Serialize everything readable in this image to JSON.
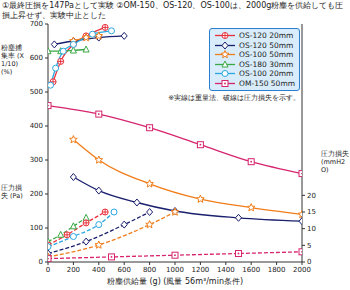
{
  "chart_data": {
    "type": "line",
    "title": "①最終圧損を147Paとして実験 ②OM-150、OS-120、OS-100は、2000g粉塵を供給しても圧損上昇せず、実験中止とした",
    "annotation": "※実線は重量法、破線は圧力損失を示す。",
    "x_label": "粉塵供給量 (g) (風量 56m³/min条件)",
    "y_label": "粉塵捕集率 (X1/10) (%)",
    "y_label_lower": "圧力損失 (Pa)",
    "y2_label": "圧力損失 (mmH2O)",
    "xlim": [
      0,
      2000
    ],
    "xticks": [
      0,
      200,
      400,
      600,
      800,
      1000,
      1200,
      1400,
      1600,
      1800,
      2000
    ],
    "ylim": [
      0,
      700
    ],
    "yticks": [
      0,
      100,
      200,
      300,
      400,
      500,
      600,
      700
    ],
    "y2lim": [
      0,
      71.4
    ],
    "y2ticks": [
      0,
      5,
      10,
      15,
      20
    ],
    "grid": false,
    "legend": "upper right",
    "series": [
      {
        "name": "OS-120 20mm",
        "color": "#e8323c",
        "marker": "circle_plus",
        "line_style": "solid",
        "x": [
          40,
          100,
          200,
          300,
          450
        ],
        "values": [
          530,
          590,
          640,
          665,
          690
        ]
      },
      {
        "name": "OS-120 50mm",
        "color": "#1a1f6e",
        "marker": "diamond",
        "line_style": "solid",
        "x": [
          50,
          200,
          400,
          600
        ],
        "values": [
          640,
          650,
          660,
          665
        ]
      },
      {
        "name": "OS-100 50mm",
        "color": "#f07d1a",
        "marker": "star",
        "line_style": "solid",
        "x": [
          200,
          300,
          400
        ],
        "values": [
          650,
          660,
          665
        ]
      },
      {
        "name": "OS-180 30mm",
        "color": "#3aa845",
        "marker": "triangle",
        "line_style": "solid",
        "x": [
          0,
          100,
          200,
          300
        ],
        "values": [
          620,
          620,
          622,
          625
        ]
      },
      {
        "name": "OS-100 20mm",
        "color": "#2aa7e0",
        "marker": "circle",
        "line_style": "solid",
        "x": [
          20,
          60,
          120,
          200,
          350,
          500
        ],
        "values": [
          520,
          570,
          620,
          640,
          670,
          680
        ]
      },
      {
        "name": "OM-150 50mm",
        "color": "#d6246e",
        "marker": "square",
        "line_style": "solid",
        "x": [
          0,
          400,
          800,
          1200,
          1600,
          2000
        ],
        "values": [
          460,
          435,
          395,
          345,
          295,
          260
        ]
      },
      {
        "name": "OS-100 50mm",
        "color": "#f07d1a",
        "marker": "star",
        "line_style": "solid",
        "x": [
          200,
          400,
          800,
          1200,
          1600,
          2000
        ],
        "values": [
          360,
          300,
          230,
          185,
          160,
          140
        ]
      },
      {
        "name": "OS-120 50mm",
        "color": "#1a1f6e",
        "marker": "diamond",
        "line_style": "solid",
        "x": [
          200,
          400,
          700,
          1000,
          1500,
          2000
        ],
        "values": [
          250,
          210,
          175,
          150,
          130,
          120
        ]
      },
      {
        "name": "OS-180 30mm",
        "color": "#3aa845",
        "marker": "triangle",
        "line_style": "dashed",
        "x": [
          0,
          100,
          200,
          300
        ],
        "values": [
          60,
          80,
          105,
          130
        ]
      },
      {
        "name": "OS-120 20mm",
        "color": "#e8323c",
        "marker": "circle_plus",
        "line_style": "dashed",
        "x": [
          0,
          150,
          300,
          450
        ],
        "values": [
          50,
          80,
          115,
          147
        ]
      },
      {
        "name": "OS-100 20mm",
        "color": "#2aa7e0",
        "marker": "circle",
        "line_style": "dashed",
        "x": [
          0,
          200,
          400,
          520
        ],
        "values": [
          45,
          75,
          110,
          147
        ]
      },
      {
        "name": "OS-120 50mm",
        "color": "#1a1f6e",
        "marker": "diamond",
        "line_style": "dashed",
        "x": [
          0,
          300,
          600,
          800
        ],
        "values": [
          25,
          60,
          110,
          147
        ]
      },
      {
        "name": "OS-100 50mm",
        "color": "#f07d1a",
        "marker": "star",
        "line_style": "dashed",
        "x": [
          0,
          400,
          800,
          1000
        ],
        "values": [
          15,
          50,
          110,
          147
        ]
      },
      {
        "name": "OM-150 50mm",
        "color": "#d6246e",
        "marker": "square",
        "line_style": "dashed",
        "x": [
          0,
          500,
          1000,
          1500,
          2000
        ],
        "values": [
          10,
          15,
          20,
          25,
          30
        ]
      }
    ]
  }
}
